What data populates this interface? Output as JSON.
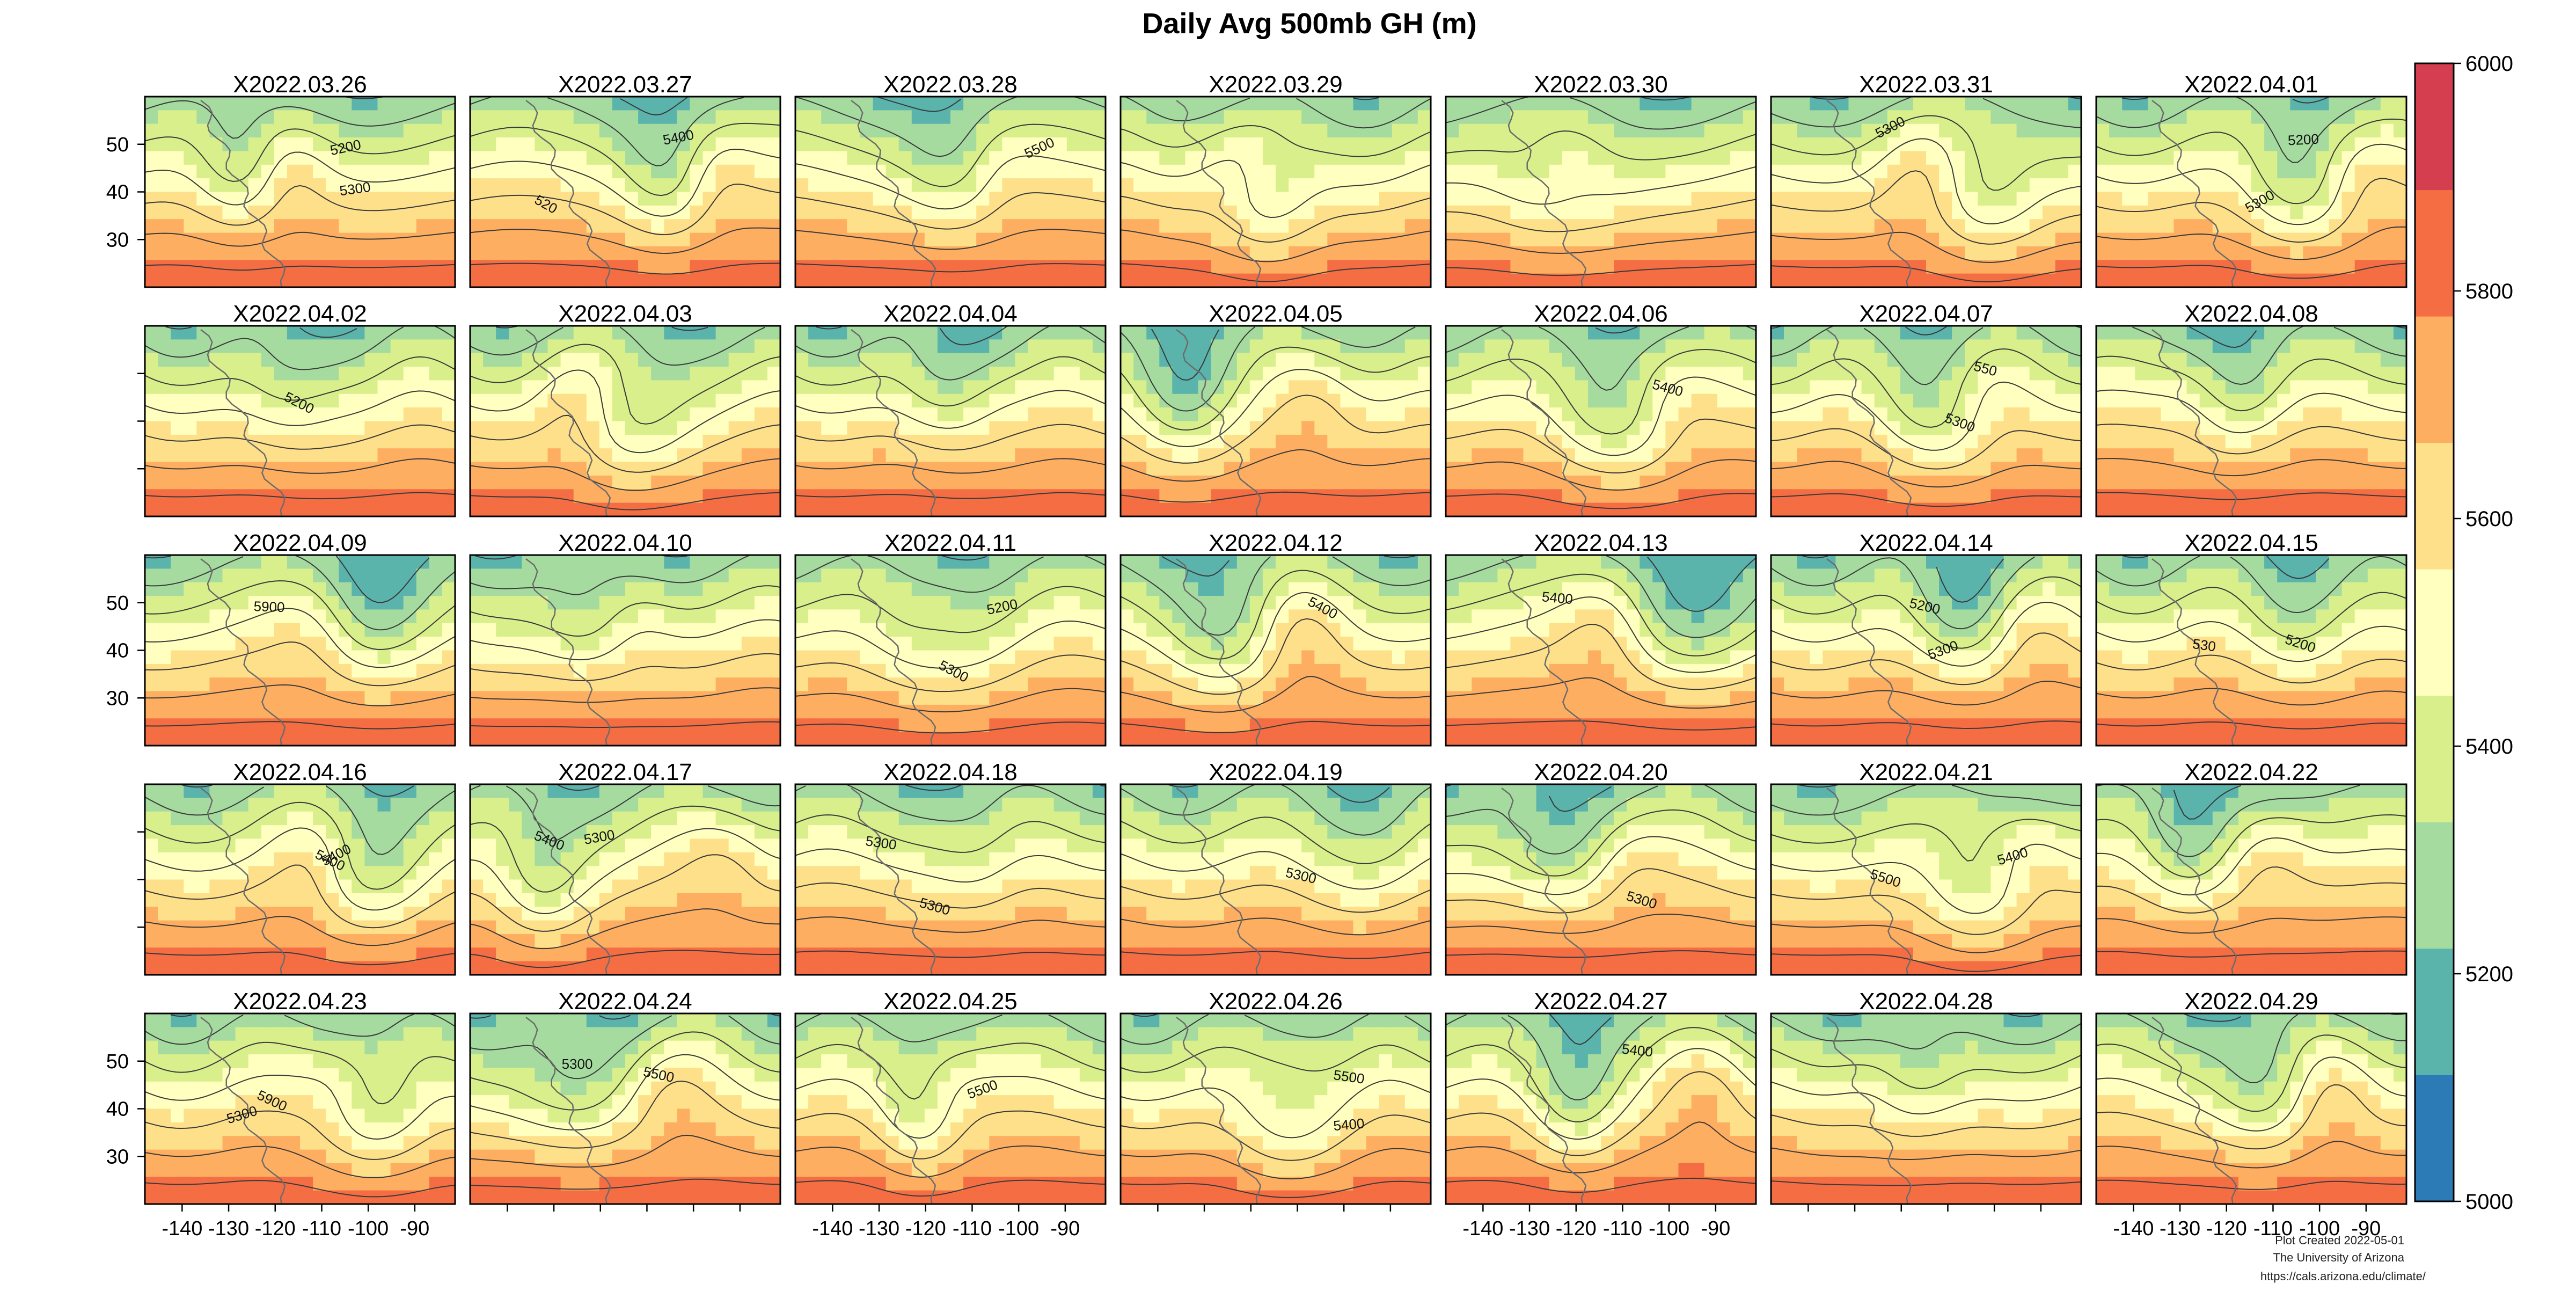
{
  "title": "Daily Avg 500mb GH (m)",
  "dates": [
    "X2022.03.26",
    "X2022.03.27",
    "X2022.03.28",
    "X2022.03.29",
    "X2022.03.30",
    "X2022.03.31",
    "X2022.04.01",
    "X2022.04.02",
    "X2022.04.03",
    "X2022.04.04",
    "X2022.04.05",
    "X2022.04.06",
    "X2022.04.07",
    "X2022.04.08",
    "X2022.04.09",
    "X2022.04.10",
    "X2022.04.11",
    "X2022.04.12",
    "X2022.04.13",
    "X2022.04.14",
    "X2022.04.15",
    "X2022.04.16",
    "X2022.04.17",
    "X2022.04.18",
    "X2022.04.19",
    "X2022.04.20",
    "X2022.04.21",
    "X2022.04.22",
    "X2022.04.23",
    "X2022.04.24",
    "X2022.04.25",
    "X2022.04.26",
    "X2022.04.27",
    "X2022.04.28",
    "X2022.04.29"
  ],
  "lat_ticks": [
    "50",
    "40",
    "30"
  ],
  "lon_ticks": [
    "-140",
    "-130",
    "-120",
    "-110",
    "-100",
    "-90"
  ],
  "colorbar": {
    "min": 5000,
    "max": 6000,
    "tick_labels": [
      "6000",
      "5800",
      "5600",
      "5400",
      "5200",
      "5000"
    ],
    "colors": [
      "#2c7bb6",
      "#5ab4ac",
      "#a6dba0",
      "#d9ef8b",
      "#ffffbf",
      "#fee08b",
      "#fdae61",
      "#f46d43",
      "#d53e4f"
    ]
  },
  "contour_labels": [
    {
      "panel": 0,
      "text": "5200"
    },
    {
      "panel": 0,
      "text": "5300"
    },
    {
      "panel": 1,
      "text": "5400"
    },
    {
      "panel": 1,
      "text": "520"
    },
    {
      "panel": 2,
      "text": "5500"
    },
    {
      "panel": 5,
      "text": "5300"
    },
    {
      "panel": 6,
      "text": "5200"
    },
    {
      "panel": 6,
      "text": "5300"
    },
    {
      "panel": 7,
      "text": "5200"
    },
    {
      "panel": 11,
      "text": "5400"
    },
    {
      "panel": 12,
      "text": "5300"
    },
    {
      "panel": 12,
      "text": "550"
    },
    {
      "panel": 14,
      "text": "5900"
    },
    {
      "panel": 16,
      "text": "5200"
    },
    {
      "panel": 16,
      "text": "5300"
    },
    {
      "panel": 17,
      "text": "5400"
    },
    {
      "panel": 18,
      "text": "5400"
    },
    {
      "panel": 19,
      "text": "5200"
    },
    {
      "panel": 19,
      "text": "5300"
    },
    {
      "panel": 20,
      "text": "5200"
    },
    {
      "panel": 20,
      "text": "530"
    },
    {
      "panel": 21,
      "text": "5400"
    },
    {
      "panel": 21,
      "text": "5400"
    },
    {
      "panel": 22,
      "text": "5300"
    },
    {
      "panel": 22,
      "text": "5400"
    },
    {
      "panel": 23,
      "text": "5300"
    },
    {
      "panel": 23,
      "text": "5300"
    },
    {
      "panel": 24,
      "text": "5300"
    },
    {
      "panel": 25,
      "text": "5300"
    },
    {
      "panel": 26,
      "text": "5400"
    },
    {
      "panel": 26,
      "text": "5500"
    },
    {
      "panel": 28,
      "text": "5300"
    },
    {
      "panel": 28,
      "text": "5900"
    },
    {
      "panel": 29,
      "text": "5300"
    },
    {
      "panel": 29,
      "text": "5500"
    },
    {
      "panel": 30,
      "text": "5500"
    },
    {
      "panel": 31,
      "text": "5400"
    },
    {
      "panel": 31,
      "text": "5500"
    },
    {
      "panel": 32,
      "text": "5400"
    }
  ],
  "credits": {
    "line1": "Plot Created 2022-05-01",
    "line2": "The University of Arizona",
    "line3": "https://cals.arizona.edu/climate/"
  }
}
